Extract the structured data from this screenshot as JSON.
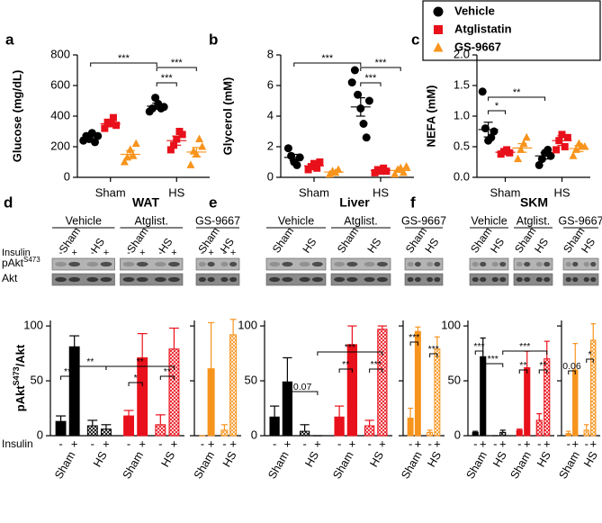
{
  "legend": {
    "series": [
      {
        "name": "Vehicle",
        "color": "#000000",
        "marker": "circle"
      },
      {
        "name": "Atglistatin",
        "color": "#e8101a",
        "marker": "square"
      },
      {
        "name": "GS-9667",
        "color": "#f7941d",
        "marker": "triangle"
      }
    ]
  },
  "chart_data": [
    {
      "type": "strip",
      "label": "a",
      "ylabel": "Glucose (mg/dL)",
      "categories": [
        "Sham",
        "HS"
      ],
      "ylim": [
        0,
        800
      ],
      "yticks": [
        0,
        200,
        400,
        600,
        800
      ],
      "series": [
        {
          "points": [
            [
              240,
              270,
              250,
              290,
              230,
              270
            ],
            [
              430,
              450,
              520,
              480,
              450,
              460
            ]
          ],
          "means": [
            260,
            465
          ],
          "errors": [
            15,
            20
          ]
        },
        {
          "points": [
            [
              320,
              360,
              350,
              390,
              340
            ],
            [
              180,
              210,
              250,
              300,
              280
            ]
          ],
          "means": [
            350,
            240
          ],
          "errors": [
            15,
            30
          ]
        },
        {
          "points": [
            [
              100,
              130,
              180,
              140,
              220
            ],
            [
              80,
              170,
              150,
              250,
              200
            ]
          ],
          "means": [
            150,
            165
          ],
          "errors": [
            25,
            30
          ]
        }
      ],
      "annotations": [
        "***",
        "***",
        "***"
      ]
    },
    {
      "type": "strip",
      "label": "b",
      "ylabel": "Glycerol (mM)",
      "categories": [
        "Sham",
        "HS"
      ],
      "ylim": [
        0,
        8
      ],
      "yticks": [
        0,
        2,
        4,
        6,
        8
      ],
      "series": [
        {
          "points": [
            [
              1.9,
              1.4,
              1.0,
              0.8,
              1.3
            ],
            [
              6.2,
              7.0,
              5.4,
              4.5,
              3.5,
              2.6,
              5.0
            ]
          ],
          "means": [
            1.3,
            4.6
          ],
          "errors": [
            0.2,
            0.6
          ]
        },
        {
          "points": [
            [
              0.5,
              0.7,
              0.9,
              0.6,
              1.0
            ],
            [
              0.3,
              0.5,
              0.4,
              0.6,
              0.4
            ]
          ],
          "means": [
            0.75,
            0.45
          ],
          "errors": [
            0.1,
            0.05
          ]
        },
        {
          "points": [
            [
              0.2,
              0.4,
              0.3,
              0.5
            ],
            [
              0.2,
              0.5,
              0.6,
              0.3,
              0.7
            ]
          ],
          "means": [
            0.35,
            0.45
          ],
          "errors": [
            0.05,
            0.1
          ]
        }
      ],
      "annotations": [
        "***",
        "***",
        "***"
      ]
    },
    {
      "type": "strip",
      "label": "c",
      "ylabel": "NEFA (mM)",
      "categories": [
        "Sham",
        "HS"
      ],
      "ylim": [
        0,
        2
      ],
      "yticks": [
        {
          "value": 0,
          "label": "0.0"
        },
        0.5,
        {
          "value": 1,
          "label": "1.0"
        },
        1.5,
        {
          "value": 2,
          "label": "2.0"
        }
      ],
      "series": [
        {
          "points": [
            [
              1.4,
              0.8,
              0.6,
              0.65,
              0.75
            ],
            [
              0.2,
              0.3,
              0.4,
              0.45,
              0.35
            ]
          ],
          "means": [
            0.78,
            0.35
          ],
          "errors": [
            0.12,
            0.05
          ]
        },
        {
          "points": [
            [
              0.38,
              0.42,
              0.45,
              0.4
            ],
            [
              0.45,
              0.6,
              0.7,
              0.5,
              0.65
            ]
          ],
          "means": [
            0.41,
            0.6
          ],
          "errors": [
            0.02,
            0.08
          ]
        },
        {
          "points": [
            [
              0.3,
              0.45,
              0.55,
              0.65
            ],
            [
              0.35,
              0.45,
              0.55,
              0.5,
              0.5
            ]
          ],
          "means": [
            0.48,
            0.47
          ],
          "errors": [
            0.07,
            0.05
          ]
        }
      ],
      "annotations": [
        "*",
        "**"
      ]
    },
    {
      "type": "bar",
      "label": "d",
      "title": "WAT",
      "ylabel": {
        "main": "pAkt",
        "sup": "S473",
        "rest": "/Akt"
      },
      "insulin_label": "Insulin",
      "blot_rows": [
        {
          "text": "pAkt",
          "sup": "S473"
        },
        {
          "text": "Akt"
        }
      ],
      "categories": [
        "Sham",
        "HS"
      ],
      "insulin": [
        "-",
        "+"
      ],
      "ylim": [
        0,
        105
      ],
      "yticks": [
        0,
        50,
        100
      ],
      "groups": [
        {
          "name": "Vehicle",
          "values": [
            13,
            81,
            9,
            6
          ],
          "errors": [
            5,
            10,
            5,
            4
          ]
        },
        {
          "name": "Atglist.",
          "values": [
            18,
            71,
            10,
            79
          ],
          "errors": [
            5,
            22,
            9,
            19
          ]
        },
        {
          "name": "GS-9667",
          "values": [
            0,
            61,
            5,
            92
          ],
          "errors": [
            0,
            42,
            5,
            14
          ]
        }
      ],
      "annotations": [
        "**",
        "**",
        "**",
        "*",
        "**"
      ]
    },
    {
      "type": "bar",
      "label": "e",
      "title": "Liver",
      "categories": [
        "Sham",
        "HS"
      ],
      "insulin": [
        "-",
        "+"
      ],
      "ylim": [
        0,
        105
      ],
      "yticks": [
        0,
        50,
        100
      ],
      "groups": [
        {
          "name": "Vehicle",
          "values": [
            17,
            49,
            4,
            0
          ],
          "errors": [
            10,
            22,
            6,
            0
          ]
        },
        {
          "name": "Atglist.",
          "values": [
            17,
            83,
            9,
            97
          ],
          "errors": [
            10,
            17,
            5,
            3
          ]
        },
        {
          "name": "GS-9667",
          "values": [
            16,
            95,
            3,
            79
          ],
          "errors": [
            9,
            4,
            2,
            11
          ]
        }
      ],
      "annotations": [
        "0.07",
        "***",
        "**",
        "***",
        "***",
        "***"
      ]
    },
    {
      "type": "bar",
      "label": "f",
      "title": "SKM",
      "categories": [
        "Sham",
        "HS"
      ],
      "insulin": [
        "-",
        "+"
      ],
      "ylim": [
        0,
        105
      ],
      "yticks": [
        0,
        50,
        100
      ],
      "groups": [
        {
          "name": "Vehicle",
          "values": [
            3,
            72,
            0,
            3
          ],
          "errors": [
            1,
            17,
            0,
            2
          ]
        },
        {
          "name": "Atglist.",
          "values": [
            5,
            62,
            14,
            70
          ],
          "errors": [
            1,
            15,
            6,
            16
          ]
        },
        {
          "name": "GS-9667",
          "values": [
            2,
            60,
            5,
            87
          ],
          "errors": [
            2,
            24,
            5,
            15
          ]
        }
      ],
      "annotations": [
        "***",
        "***",
        "***",
        "**",
        "**",
        "0.06",
        "*"
      ]
    }
  ]
}
